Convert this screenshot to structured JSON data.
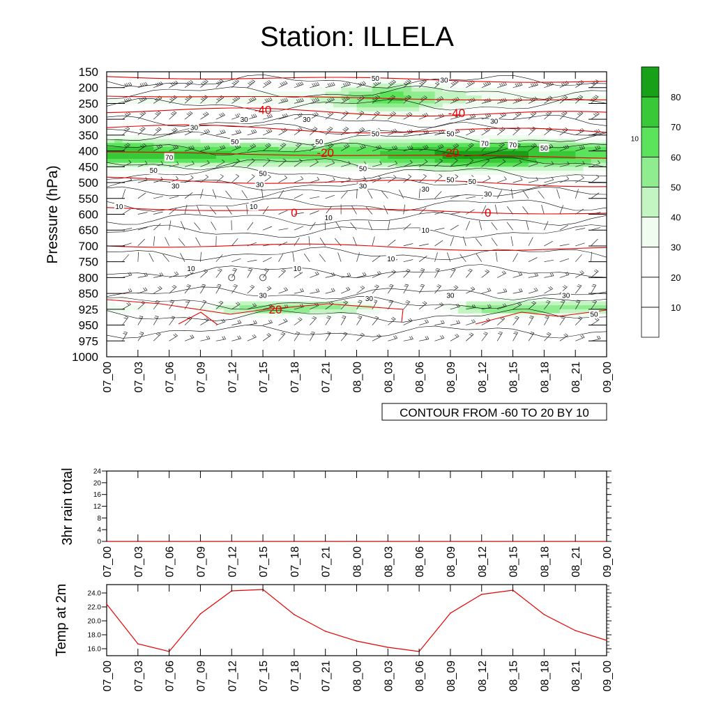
{
  "title": "Station: ILLELA",
  "colors": {
    "background": "#ffffff",
    "frame": "#000000",
    "contour_line": "#000000",
    "temp_contour": "#e60000",
    "temp_series": "#e60000",
    "fill_levels": [
      "#ffffff",
      "#ffffff",
      "#ffffff",
      "#f0fcf0",
      "#c3f5c3",
      "#8fec8f",
      "#5be45b",
      "#38c838",
      "#18a018"
    ]
  },
  "chart_data": [
    {
      "id": "main",
      "type": "heatmap",
      "title": "Station: ILLELA",
      "ylabel": "Pressure (hPa)",
      "xlabel": "",
      "y_ticks": [
        "150",
        "200",
        "250",
        "300",
        "350",
        "400",
        "450",
        "500",
        "550",
        "600",
        "650",
        "700",
        "750",
        "800",
        "850",
        "925",
        "950",
        "975",
        "1000"
      ],
      "x_ticks": [
        "07_00",
        "07_03",
        "07_06",
        "07_09",
        "07_12",
        "07_15",
        "07_18",
        "07_21",
        "08_00",
        "08_03",
        "08_06",
        "08_09",
        "08_12",
        "08_15",
        "08_18",
        "08_21",
        "09_00"
      ],
      "info_label": "CONTOUR FROM -60 TO 20 BY 10",
      "colorbar": {
        "levels": [
          "10",
          "20",
          "30",
          "40",
          "50",
          "60",
          "70",
          "80"
        ],
        "level_values": [
          10,
          20,
          30,
          40,
          50,
          60,
          70,
          80
        ]
      },
      "humidity_labels": [
        {
          "t": 4.4,
          "p": 3.0,
          "text": "30"
        },
        {
          "t": 8.6,
          "p": 0.4,
          "text": "50"
        },
        {
          "t": 10.8,
          "p": 0.5,
          "text": "30"
        },
        {
          "t": 2.8,
          "p": 3.5,
          "text": "30"
        },
        {
          "t": 6.4,
          "p": 3.0,
          "text": "30"
        },
        {
          "t": 12.4,
          "p": 3.1,
          "text": "30"
        },
        {
          "t": 16.9,
          "p": 4.2,
          "text": "10"
        },
        {
          "t": 4.1,
          "p": 4.4,
          "text": "50"
        },
        {
          "t": 6.8,
          "p": 4.4,
          "text": "50"
        },
        {
          "t": 8.6,
          "p": 3.9,
          "text": "50"
        },
        {
          "t": 11.0,
          "p": 3.9,
          "text": "50"
        },
        {
          "t": 12.1,
          "p": 4.5,
          "text": "70"
        },
        {
          "t": 13.0,
          "p": 4.6,
          "text": "70"
        },
        {
          "t": 14.0,
          "p": 4.8,
          "text": "50"
        },
        {
          "t": 2.0,
          "p": 5.4,
          "text": "70"
        },
        {
          "t": 1.5,
          "p": 6.2,
          "text": "50"
        },
        {
          "t": 5.0,
          "p": 6.4,
          "text": "50"
        },
        {
          "t": 8.2,
          "p": 6.1,
          "text": "50"
        },
        {
          "t": 11.0,
          "p": 6.8,
          "text": "50"
        },
        {
          "t": 11.7,
          "p": 6.9,
          "text": "50"
        },
        {
          "t": 2.2,
          "p": 7.2,
          "text": "30"
        },
        {
          "t": 4.9,
          "p": 7.1,
          "text": "30"
        },
        {
          "t": 8.2,
          "p": 7.2,
          "text": "30"
        },
        {
          "t": 10.2,
          "p": 7.4,
          "text": "30"
        },
        {
          "t": 12.2,
          "p": 7.7,
          "text": "30"
        },
        {
          "t": 0.4,
          "p": 8.5,
          "text": "10"
        },
        {
          "t": 4.7,
          "p": 8.5,
          "text": "10"
        },
        {
          "t": 7.1,
          "p": 9.2,
          "text": "10"
        },
        {
          "t": 10.2,
          "p": 10.0,
          "text": "10"
        },
        {
          "t": 2.7,
          "p": 12.4,
          "text": "10"
        },
        {
          "t": 6.1,
          "p": 12.4,
          "text": "10"
        },
        {
          "t": 9.1,
          "p": 11.8,
          "text": "10"
        },
        {
          "t": 5.0,
          "p": 14.1,
          "text": "30"
        },
        {
          "t": 8.4,
          "p": 14.3,
          "text": "30"
        },
        {
          "t": 11.0,
          "p": 14.1,
          "text": "30"
        },
        {
          "t": 14.7,
          "p": 14.1,
          "text": "30"
        },
        {
          "t": 15.6,
          "p": 15.3,
          "text": "50"
        }
      ],
      "temp_labels": [
        {
          "t": 5.0,
          "p": 2.4,
          "text": "-40"
        },
        {
          "t": 11.2,
          "p": 2.6,
          "text": "-40"
        },
        {
          "t": 7.0,
          "p": 5.1,
          "text": "-20"
        },
        {
          "t": 11.0,
          "p": 5.1,
          "text": "-20"
        },
        {
          "t": 6.0,
          "p": 8.9,
          "text": "0"
        },
        {
          "t": 12.2,
          "p": 8.9,
          "text": "0"
        },
        {
          "t": 5.4,
          "p": 15.0,
          "text": "20"
        }
      ],
      "calm_winds": [
        {
          "t": 4.0,
          "p": 13.0
        },
        {
          "t": 5.0,
          "p": 13.0
        }
      ]
    },
    {
      "id": "rain",
      "type": "line",
      "ylabel": "3hr rain total",
      "xlabel": "",
      "ylim": [
        0,
        24
      ],
      "y_ticks": [
        "0",
        "4",
        "8",
        "12",
        "16",
        "20",
        "24"
      ],
      "x_ticks": [
        "07_00",
        "07_03",
        "07_06",
        "07_09",
        "07_12",
        "07_15",
        "07_18",
        "07_21",
        "08_00",
        "08_03",
        "08_06",
        "08_09",
        "08_12",
        "08_15",
        "08_18",
        "08_21",
        "09_00"
      ],
      "series": [
        {
          "name": "3hr rain total",
          "values": [
            0,
            0,
            0,
            0,
            0,
            0,
            0,
            0,
            0,
            0,
            0,
            0,
            0,
            0,
            0,
            0,
            0
          ]
        }
      ]
    },
    {
      "id": "temp",
      "type": "line",
      "ylabel": "Temp at 2m",
      "xlabel": "",
      "ylim": [
        15.0,
        25.2
      ],
      "y_ticks": [
        "16.0",
        "18.0",
        "20.0",
        "22.0",
        "24.0"
      ],
      "x_ticks": [
        "07_00",
        "07_03",
        "07_06",
        "07_09",
        "07_12",
        "07_15",
        "07_18",
        "07_21",
        "08_00",
        "08_03",
        "08_06",
        "08_09",
        "08_12",
        "08_15",
        "08_18",
        "08_21",
        "09_00"
      ],
      "series": [
        {
          "name": "Temp at 2m",
          "values": [
            22.4,
            16.7,
            15.6,
            21.0,
            24.3,
            24.5,
            20.9,
            18.5,
            17.1,
            16.2,
            15.6,
            21.1,
            23.8,
            24.4,
            20.9,
            18.6,
            17.2
          ]
        }
      ]
    }
  ]
}
